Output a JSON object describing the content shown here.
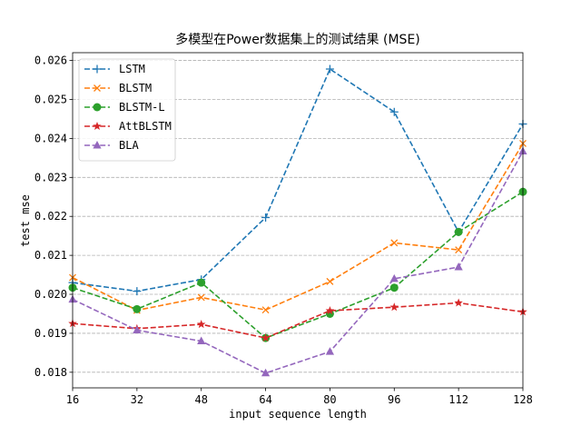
{
  "chart_data": {
    "type": "line",
    "title": "多模型在Power数据集上的测试结果 (MSE)",
    "xlabel": "input sequence length",
    "ylabel": "test mse",
    "x": [
      16,
      32,
      48,
      64,
      80,
      96,
      112,
      128
    ],
    "xlim": [
      16,
      128
    ],
    "ylim": [
      0.0176,
      0.0262
    ],
    "yticks": [
      0.018,
      0.019,
      0.02,
      0.021,
      0.022,
      0.023,
      0.024,
      0.025,
      0.026
    ],
    "ytick_labels": [
      "0.018",
      "0.019",
      "0.020",
      "0.021",
      "0.022",
      "0.023",
      "0.024",
      "0.025",
      "0.026"
    ],
    "xtick_labels": [
      "16",
      "32",
      "48",
      "64",
      "80",
      "96",
      "112",
      "128"
    ],
    "grid": "y-dashed",
    "legend_position": "top-left",
    "series": [
      {
        "name": "LSTM",
        "color": "#1f77b4",
        "marker": "plus",
        "values": [
          0.0203,
          0.02008,
          0.02038,
          0.02197,
          0.02578,
          0.02468,
          0.0216,
          0.02437
        ]
      },
      {
        "name": "BLSTM",
        "color": "#ff7f0e",
        "marker": "x",
        "values": [
          0.02043,
          0.01959,
          0.01992,
          0.0196,
          0.02033,
          0.02132,
          0.02114,
          0.02387
        ]
      },
      {
        "name": "BLSTM-L",
        "color": "#2ca02c",
        "marker": "circle",
        "values": [
          0.02017,
          0.01962,
          0.0203,
          0.01888,
          0.0195,
          0.02017,
          0.0216,
          0.02263
        ]
      },
      {
        "name": "AttBLSTM",
        "color": "#d62728",
        "marker": "star",
        "values": [
          0.01925,
          0.01912,
          0.01923,
          0.01888,
          0.01958,
          0.01967,
          0.01978,
          0.01955
        ]
      },
      {
        "name": "BLA",
        "color": "#9467bd",
        "marker": "triangle",
        "values": [
          0.01987,
          0.01908,
          0.0188,
          0.01798,
          0.01853,
          0.0204,
          0.0207,
          0.02367
        ]
      }
    ]
  }
}
